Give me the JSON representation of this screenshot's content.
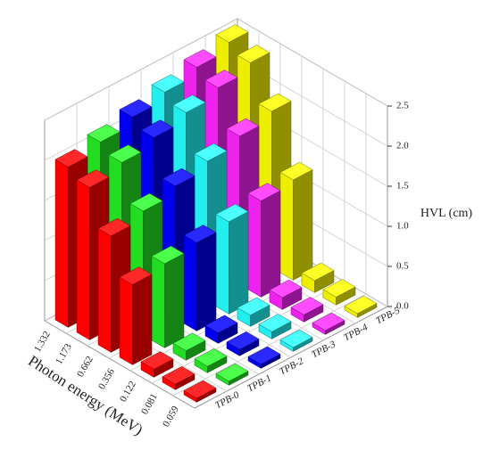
{
  "chart_data": {
    "type": "bar3d",
    "x_label": "Photon energy (MeV)",
    "y_label": "HVL (cm)",
    "categories": [
      "1.332",
      "1.173",
      "0.662",
      "0.356",
      "0.122",
      "0.081",
      "0.059"
    ],
    "series": [
      {
        "name": "TPB-0",
        "color": "#ff0000",
        "values": [
          2.0,
          1.9,
          1.45,
          1.0,
          0.1,
          0.07,
          0.05
        ]
      },
      {
        "name": "TPB-1",
        "color": "#22dd22",
        "values": [
          2.1,
          2.0,
          1.55,
          1.05,
          0.12,
          0.08,
          0.05
        ]
      },
      {
        "name": "TPB-2",
        "color": "#0000ee",
        "values": [
          2.2,
          2.1,
          1.65,
          1.1,
          0.13,
          0.08,
          0.05
        ]
      },
      {
        "name": "TPB-3",
        "color": "#22eeee",
        "values": [
          2.3,
          2.2,
          1.75,
          1.15,
          0.14,
          0.09,
          0.05
        ]
      },
      {
        "name": "TPB-4",
        "color": "#ee22ee",
        "values": [
          2.4,
          2.3,
          1.85,
          1.2,
          0.15,
          0.09,
          0.05
        ]
      },
      {
        "name": "TPB-5",
        "color": "#eeee00",
        "values": [
          2.5,
          2.4,
          1.95,
          1.25,
          0.15,
          0.1,
          0.05
        ]
      }
    ],
    "ylim": [
      0,
      2.5
    ],
    "yticks": [
      {
        "value": 0,
        "label": "0.0"
      },
      0.5,
      {
        "value": 1,
        "label": "1.0"
      },
      1.5,
      {
        "value": 2,
        "label": "2.0"
      },
      2.5
    ],
    "grid": true
  }
}
